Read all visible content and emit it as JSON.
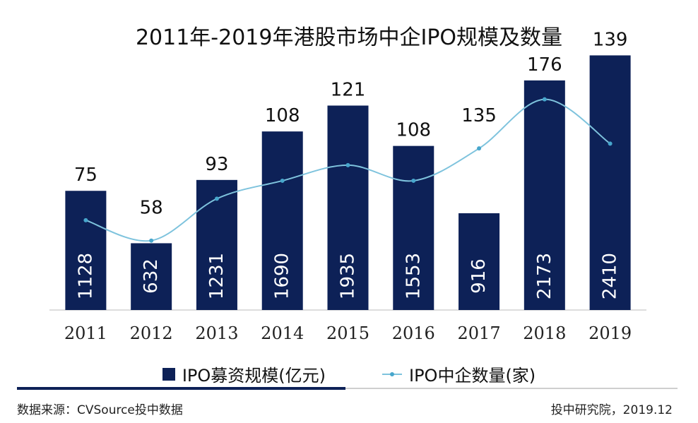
{
  "chart_data": {
    "type": "bar",
    "title": "2011年-2019年港股市场中企IPO规模及数量",
    "categories": [
      "2011",
      "2012",
      "2013",
      "2014",
      "2015",
      "2016",
      "2017",
      "2018",
      "2019"
    ],
    "series": [
      {
        "name": "IPO募资规模(亿元)",
        "type": "bar",
        "values": [
          1128,
          632,
          1231,
          1690,
          1935,
          1553,
          916,
          2173,
          2410
        ]
      },
      {
        "name": "IPO中企数量(家)",
        "type": "line",
        "values": [
          75,
          58,
          93,
          108,
          121,
          108,
          135,
          176,
          139
        ]
      }
    ],
    "legend": [
      "IPO募资规模(亿元)",
      "IPO中企数量(家)"
    ],
    "legend_position": "bottom",
    "colors": {
      "bar": "#0d2157",
      "line": "#7ec3dd",
      "marker": "#47a6cc"
    },
    "bar_ylim": [
      0,
      2600
    ],
    "line_ylim": [
      0,
      200
    ]
  },
  "footer": {
    "source": "数据来源：CVSource投中数据",
    "credit": "投中研究院，2019.12"
  }
}
